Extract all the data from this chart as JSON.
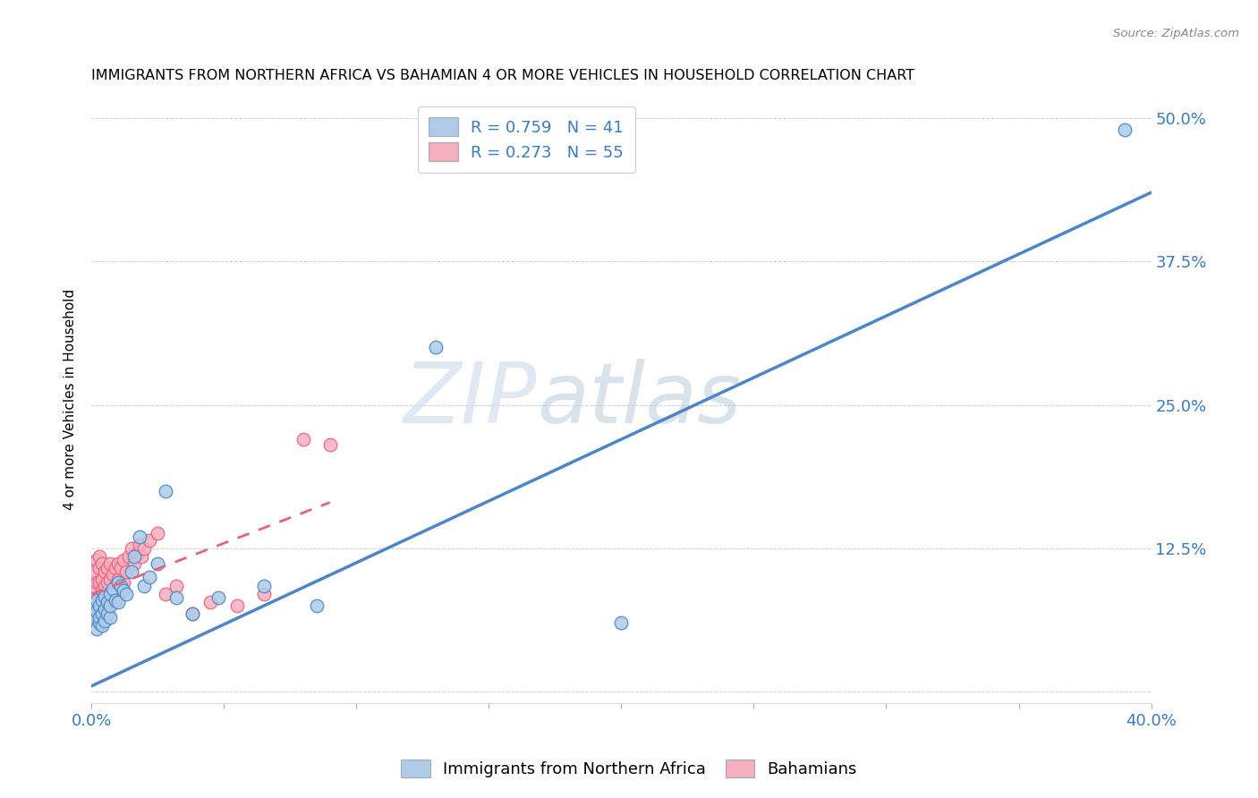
{
  "title": "IMMIGRANTS FROM NORTHERN AFRICA VS BAHAMIAN 4 OR MORE VEHICLES IN HOUSEHOLD CORRELATION CHART",
  "source": "Source: ZipAtlas.com",
  "ylabel": "4 or more Vehicles in Household",
  "legend_label1": "Immigrants from Northern Africa",
  "legend_label2": "Bahamians",
  "R1": 0.759,
  "N1": 41,
  "R2": 0.273,
  "N2": 55,
  "color1": "#aecce8",
  "color2": "#f4afc0",
  "line_color1": "#4a86c8",
  "line_color2": "#e8637a",
  "xlim": [
    0.0,
    0.4
  ],
  "ylim": [
    -0.01,
    0.52
  ],
  "xticks": [
    0.0,
    0.05,
    0.1,
    0.15,
    0.2,
    0.25,
    0.3,
    0.35,
    0.4
  ],
  "xticklabels": [
    "0.0%",
    "",
    "",
    "",
    "",
    "",
    "",
    "",
    "40.0%"
  ],
  "yticks": [
    0.0,
    0.125,
    0.25,
    0.375,
    0.5
  ],
  "yticklabels": [
    "",
    "12.5%",
    "25.0%",
    "37.5%",
    "50.0%"
  ],
  "watermark_zip": "ZIP",
  "watermark_atlas": "atlas",
  "trendline1_x": [
    0.0,
    0.4
  ],
  "trendline1_y": [
    0.005,
    0.435
  ],
  "trendline2_x": [
    0.0,
    0.09
  ],
  "trendline2_y": [
    0.085,
    0.165
  ],
  "scatter1_x": [
    0.001,
    0.001,
    0.002,
    0.002,
    0.002,
    0.003,
    0.003,
    0.003,
    0.004,
    0.004,
    0.004,
    0.005,
    0.005,
    0.005,
    0.006,
    0.006,
    0.007,
    0.007,
    0.007,
    0.008,
    0.009,
    0.01,
    0.01,
    0.011,
    0.012,
    0.013,
    0.015,
    0.016,
    0.018,
    0.02,
    0.022,
    0.025,
    0.028,
    0.032,
    0.038,
    0.048,
    0.065,
    0.085,
    0.13,
    0.2,
    0.39
  ],
  "scatter1_y": [
    0.065,
    0.075,
    0.07,
    0.055,
    0.08,
    0.06,
    0.075,
    0.065,
    0.08,
    0.068,
    0.058,
    0.072,
    0.083,
    0.062,
    0.078,
    0.068,
    0.085,
    0.065,
    0.075,
    0.09,
    0.08,
    0.095,
    0.078,
    0.092,
    0.088,
    0.085,
    0.105,
    0.118,
    0.135,
    0.092,
    0.1,
    0.112,
    0.175,
    0.082,
    0.068,
    0.082,
    0.092,
    0.075,
    0.3,
    0.06,
    0.49
  ],
  "scatter2_x": [
    0.001,
    0.001,
    0.001,
    0.001,
    0.002,
    0.002,
    0.002,
    0.002,
    0.003,
    0.003,
    0.003,
    0.003,
    0.003,
    0.004,
    0.004,
    0.004,
    0.004,
    0.005,
    0.005,
    0.005,
    0.006,
    0.006,
    0.006,
    0.007,
    0.007,
    0.007,
    0.008,
    0.008,
    0.009,
    0.009,
    0.01,
    0.01,
    0.01,
    0.011,
    0.011,
    0.012,
    0.012,
    0.013,
    0.014,
    0.015,
    0.016,
    0.017,
    0.018,
    0.019,
    0.02,
    0.022,
    0.025,
    0.028,
    0.032,
    0.038,
    0.045,
    0.055,
    0.065,
    0.08,
    0.09
  ],
  "scatter2_y": [
    0.068,
    0.078,
    0.092,
    0.105,
    0.065,
    0.08,
    0.095,
    0.115,
    0.072,
    0.082,
    0.095,
    0.108,
    0.118,
    0.075,
    0.088,
    0.098,
    0.112,
    0.078,
    0.092,
    0.105,
    0.082,
    0.095,
    0.108,
    0.085,
    0.098,
    0.112,
    0.088,
    0.102,
    0.092,
    0.108,
    0.085,
    0.098,
    0.112,
    0.09,
    0.108,
    0.095,
    0.115,
    0.105,
    0.118,
    0.125,
    0.112,
    0.12,
    0.128,
    0.118,
    0.125,
    0.132,
    0.138,
    0.085,
    0.092,
    0.068,
    0.078,
    0.075,
    0.085,
    0.22,
    0.215
  ]
}
